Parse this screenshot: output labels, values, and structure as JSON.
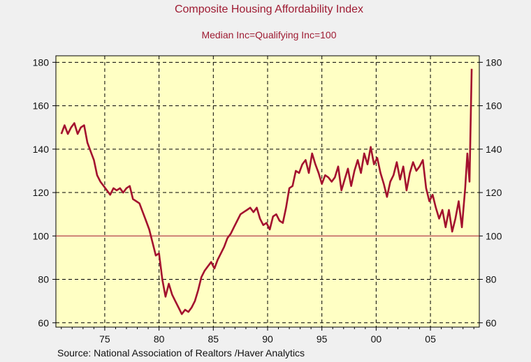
{
  "chart_data": {
    "type": "line",
    "title": "Composite Housing Affordability Index",
    "subtitle": "Median Inc=Qualifying Inc=100",
    "source": "Source:  National Association of Realtors /Haver Analytics",
    "x_tick_labels": [
      "75",
      "80",
      "85",
      "90",
      "95",
      "00",
      "05"
    ],
    "x_tick_years": [
      1975,
      1980,
      1985,
      1990,
      1995,
      2000,
      2005
    ],
    "y_tick_labels": [
      "60",
      "80",
      "100",
      "120",
      "140",
      "160",
      "180"
    ],
    "y_ticks": [
      60,
      80,
      100,
      120,
      140,
      160,
      180
    ],
    "xlim": [
      1970.5,
      2009.5
    ],
    "ylim": [
      58,
      183
    ],
    "reference_line": 100,
    "grid": true,
    "colors": {
      "plot_bg": "#ffffc4",
      "series": "#a3112e",
      "text": "#9e1b32",
      "reference": "#a3112e"
    },
    "series": [
      {
        "name": "Composite Housing Affordability Index",
        "x": [
          1971.0,
          1971.3,
          1971.6,
          1971.9,
          1972.2,
          1972.5,
          1972.8,
          1973.1,
          1973.4,
          1973.7,
          1974.0,
          1974.3,
          1974.6,
          1974.9,
          1975.2,
          1975.5,
          1975.8,
          1976.1,
          1976.4,
          1976.7,
          1977.0,
          1977.3,
          1977.6,
          1977.9,
          1978.2,
          1978.5,
          1978.8,
          1979.1,
          1979.4,
          1979.7,
          1980.0,
          1980.3,
          1980.6,
          1980.9,
          1981.2,
          1981.5,
          1981.8,
          1982.1,
          1982.4,
          1982.7,
          1983.0,
          1983.3,
          1983.6,
          1983.9,
          1984.2,
          1984.5,
          1984.8,
          1985.1,
          1985.4,
          1985.7,
          1986.0,
          1986.3,
          1986.6,
          1986.9,
          1987.2,
          1987.5,
          1987.8,
          1988.1,
          1988.4,
          1988.7,
          1989.0,
          1989.3,
          1989.6,
          1989.9,
          1990.2,
          1990.5,
          1990.8,
          1991.1,
          1991.4,
          1991.7,
          1992.0,
          1992.3,
          1992.6,
          1992.9,
          1993.2,
          1993.5,
          1993.8,
          1994.1,
          1994.4,
          1994.7,
          1995.0,
          1995.3,
          1995.6,
          1995.9,
          1996.2,
          1996.5,
          1996.8,
          1997.1,
          1997.4,
          1997.7,
          1998.0,
          1998.3,
          1998.6,
          1998.9,
          1999.2,
          1999.5,
          1999.8,
          2000.1,
          2000.4,
          2000.7,
          2001.0,
          2001.3,
          2001.6,
          2001.9,
          2002.2,
          2002.5,
          2002.8,
          2003.1,
          2003.4,
          2003.7,
          2004.0,
          2004.3,
          2004.6,
          2004.9,
          2005.2,
          2005.5,
          2005.8,
          2006.1,
          2006.4,
          2006.7,
          2007.0,
          2007.3,
          2007.6,
          2007.9,
          2008.2,
          2008.4,
          2008.6,
          2008.8
        ],
        "values": [
          147,
          151,
          147,
          150,
          152,
          147,
          150,
          151,
          143,
          139,
          135,
          128,
          125,
          123,
          121,
          119,
          122,
          121,
          122,
          120,
          122,
          123,
          117,
          116,
          115,
          111,
          107,
          103,
          97,
          91,
          92,
          80,
          72,
          78,
          73,
          70,
          67,
          64,
          66,
          65,
          67,
          70,
          75,
          81,
          84,
          86,
          88,
          85,
          89,
          92,
          95,
          99,
          101,
          104,
          107,
          110,
          111,
          112,
          113,
          111,
          113,
          108,
          105,
          106,
          103,
          109,
          110,
          107,
          106,
          113,
          122,
          123,
          130,
          129,
          133,
          135,
          129,
          138,
          133,
          129,
          124,
          128,
          127,
          125,
          127,
          132,
          121,
          126,
          131,
          123,
          130,
          135,
          129,
          138,
          133,
          141,
          133,
          136,
          129,
          124,
          118,
          125,
          128,
          134,
          126,
          132,
          121,
          129,
          134,
          130,
          132,
          135,
          122,
          116,
          119,
          113,
          108,
          112,
          104,
          112,
          102,
          108,
          116,
          104,
          122,
          138,
          125,
          177
        ]
      }
    ],
    "xlabel": "",
    "ylabel": ""
  }
}
